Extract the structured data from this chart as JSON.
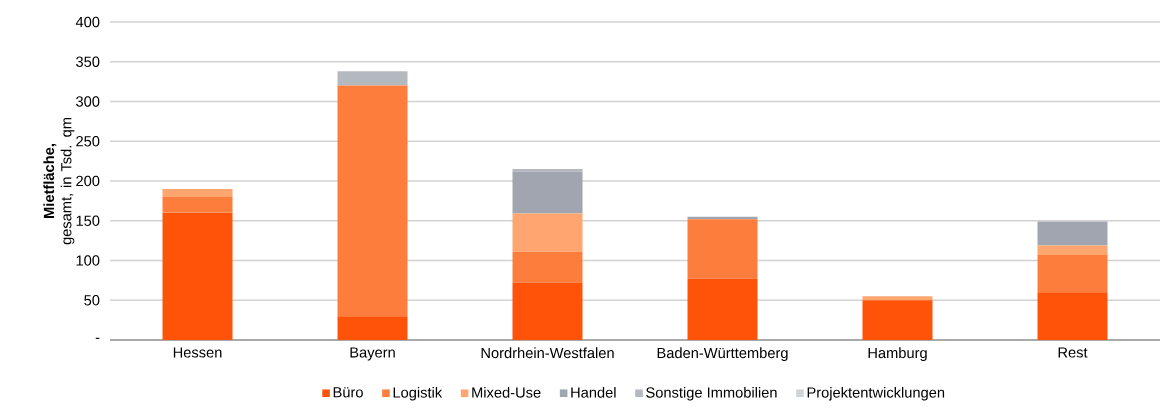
{
  "chart_data": {
    "type": "bar",
    "stacked": true,
    "ylabel": "**Mietfläche,** gesamt, in Tsd. qm",
    "categories": [
      "Hessen",
      "Bayern",
      "Nordrhein-Westfalen",
      "Baden-Württemberg",
      "Hamburg",
      "Rest"
    ],
    "series": [
      {
        "name": "Büro",
        "color": "#ff5309",
        "values": [
          160,
          30,
          72,
          77,
          50,
          60
        ]
      },
      {
        "name": "Logistik",
        "color": "#fd7e3c",
        "values": [
          20,
          290,
          39,
          75,
          0,
          47
        ]
      },
      {
        "name": "Mixed-Use",
        "color": "#ffa56f",
        "values": [
          10,
          0,
          48,
          0,
          5,
          12
        ]
      },
      {
        "name": "Handel",
        "color": "#a0a5b0",
        "values": [
          0,
          0,
          53,
          3,
          0,
          30
        ]
      },
      {
        "name": "Sonstige Immobilien",
        "color": "#b4b9c0",
        "values": [
          0,
          18,
          3,
          0,
          0,
          0
        ]
      },
      {
        "name": "Projektentwicklungen",
        "color": "#d0d4d8",
        "values": [
          0,
          0,
          0,
          0,
          0,
          0
        ]
      }
    ],
    "ylim": [
      0,
      400
    ],
    "yticks": [
      {
        "value": 0,
        "label": "-"
      },
      50,
      100,
      150,
      200,
      250,
      300,
      350,
      400
    ],
    "grid": "y",
    "legend": "bottom"
  }
}
